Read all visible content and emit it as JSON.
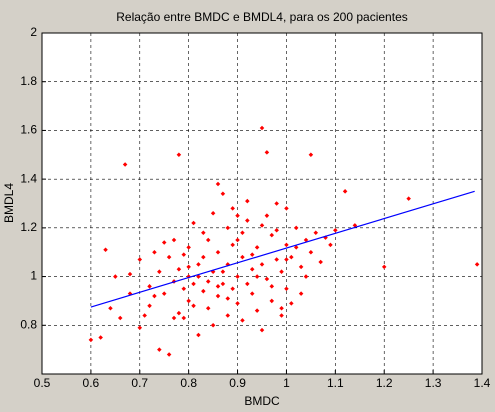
{
  "chart_data": {
    "type": "scatter",
    "title": "Relação entre BMDC e BMDL4, para os 200 pacientes",
    "x_label": "BMDC",
    "y_label": "BMDL4",
    "xlim": [
      0.5,
      1.4
    ],
    "xticks": [
      0.5,
      0.6,
      0.7,
      0.8,
      0.9,
      1,
      1.1,
      1.2,
      1.3,
      1.4
    ],
    "ylim": [
      0.6,
      2
    ],
    "yticks": [
      0.8,
      1,
      1.2,
      1.4,
      1.6,
      1.8,
      2
    ],
    "grid": true,
    "series": [
      {
        "type": "scatter",
        "color": "#ff0000",
        "x": [
          0.6,
          0.62,
          0.63,
          0.64,
          0.65,
          0.66,
          0.67,
          0.68,
          0.7,
          0.7,
          0.71,
          0.72,
          0.73,
          0.74,
          0.74,
          0.75,
          0.76,
          0.76,
          0.77,
          0.77,
          0.78,
          0.78,
          0.78,
          0.79,
          0.79,
          0.8,
          0.8,
          0.8,
          0.81,
          0.81,
          0.82,
          0.82,
          0.83,
          0.83,
          0.84,
          0.84,
          0.85,
          0.85,
          0.85,
          0.86,
          0.86,
          0.87,
          0.87,
          0.88,
          0.88,
          0.88,
          0.89,
          0.89,
          0.9,
          0.9,
          0.9,
          0.91,
          0.91,
          0.92,
          0.92,
          0.93,
          0.93,
          0.94,
          0.94,
          0.95,
          0.95,
          0.95,
          0.96,
          0.96,
          0.97,
          0.97,
          0.98,
          0.98,
          0.99,
          0.99,
          1.0,
          1.0,
          1.0,
          1.01,
          1.01,
          1.02,
          1.03,
          1.03,
          1.04,
          1.05,
          1.05,
          1.06,
          1.07,
          1.08,
          1.1,
          1.12,
          1.14,
          1.2,
          1.25,
          1.39,
          0.68,
          0.72,
          0.75,
          0.79,
          0.83,
          0.86,
          0.89,
          0.92,
          0.96,
          1.0,
          0.73,
          0.77,
          0.81,
          0.84,
          0.87,
          0.91,
          0.94,
          0.97,
          1.02,
          1.09,
          0.8,
          0.82,
          0.86,
          0.88,
          0.9,
          0.93,
          0.95,
          0.98,
          0.99,
          1.04
        ],
        "values": [
          0.74,
          0.75,
          1.11,
          0.87,
          1.0,
          0.83,
          1.46,
          0.93,
          0.79,
          1.07,
          0.84,
          0.96,
          1.1,
          0.7,
          1.02,
          0.93,
          0.68,
          1.08,
          0.98,
          1.15,
          1.5,
          0.85,
          1.03,
          0.83,
          0.95,
          1.12,
          1.0,
          0.9,
          0.88,
          1.22,
          1.05,
          0.76,
          0.94,
          1.18,
          0.98,
          0.87,
          1.26,
          1.02,
          0.8,
          0.92,
          1.1,
          0.97,
          1.34,
          1.05,
          0.84,
          1.2,
          0.95,
          1.28,
          1.0,
          0.89,
          1.15,
          1.08,
          0.82,
          0.97,
          1.23,
          1.03,
          0.93,
          1.12,
          0.86,
          1.61,
          1.05,
          0.78,
          1.51,
          0.99,
          1.17,
          0.9,
          1.07,
          1.3,
          1.02,
          0.84,
          1.13,
          0.95,
          1.28,
          1.08,
          0.89,
          1.2,
          1.04,
          0.93,
          1.15,
          1.5,
          1.1,
          1.18,
          1.06,
          1.16,
          1.19,
          1.35,
          1.21,
          1.04,
          1.32,
          1.05,
          1.01,
          0.88,
          1.14,
          1.09,
          1.08,
          1.38,
          1.13,
          1.31,
          1.25,
          1.07,
          0.92,
          0.83,
          0.97,
          1.15,
          1.02,
          1.18,
          1.0,
          0.96,
          1.12,
          1.13,
          1.04,
          1.0,
          0.96,
          0.91,
          1.25,
          1.09,
          1.21,
          1.19,
          0.87,
          1.0
        ]
      },
      {
        "type": "line",
        "color": "#0000ff",
        "x": [
          0.6,
          1.385
        ],
        "values": [
          0.875,
          1.35
        ]
      }
    ]
  }
}
